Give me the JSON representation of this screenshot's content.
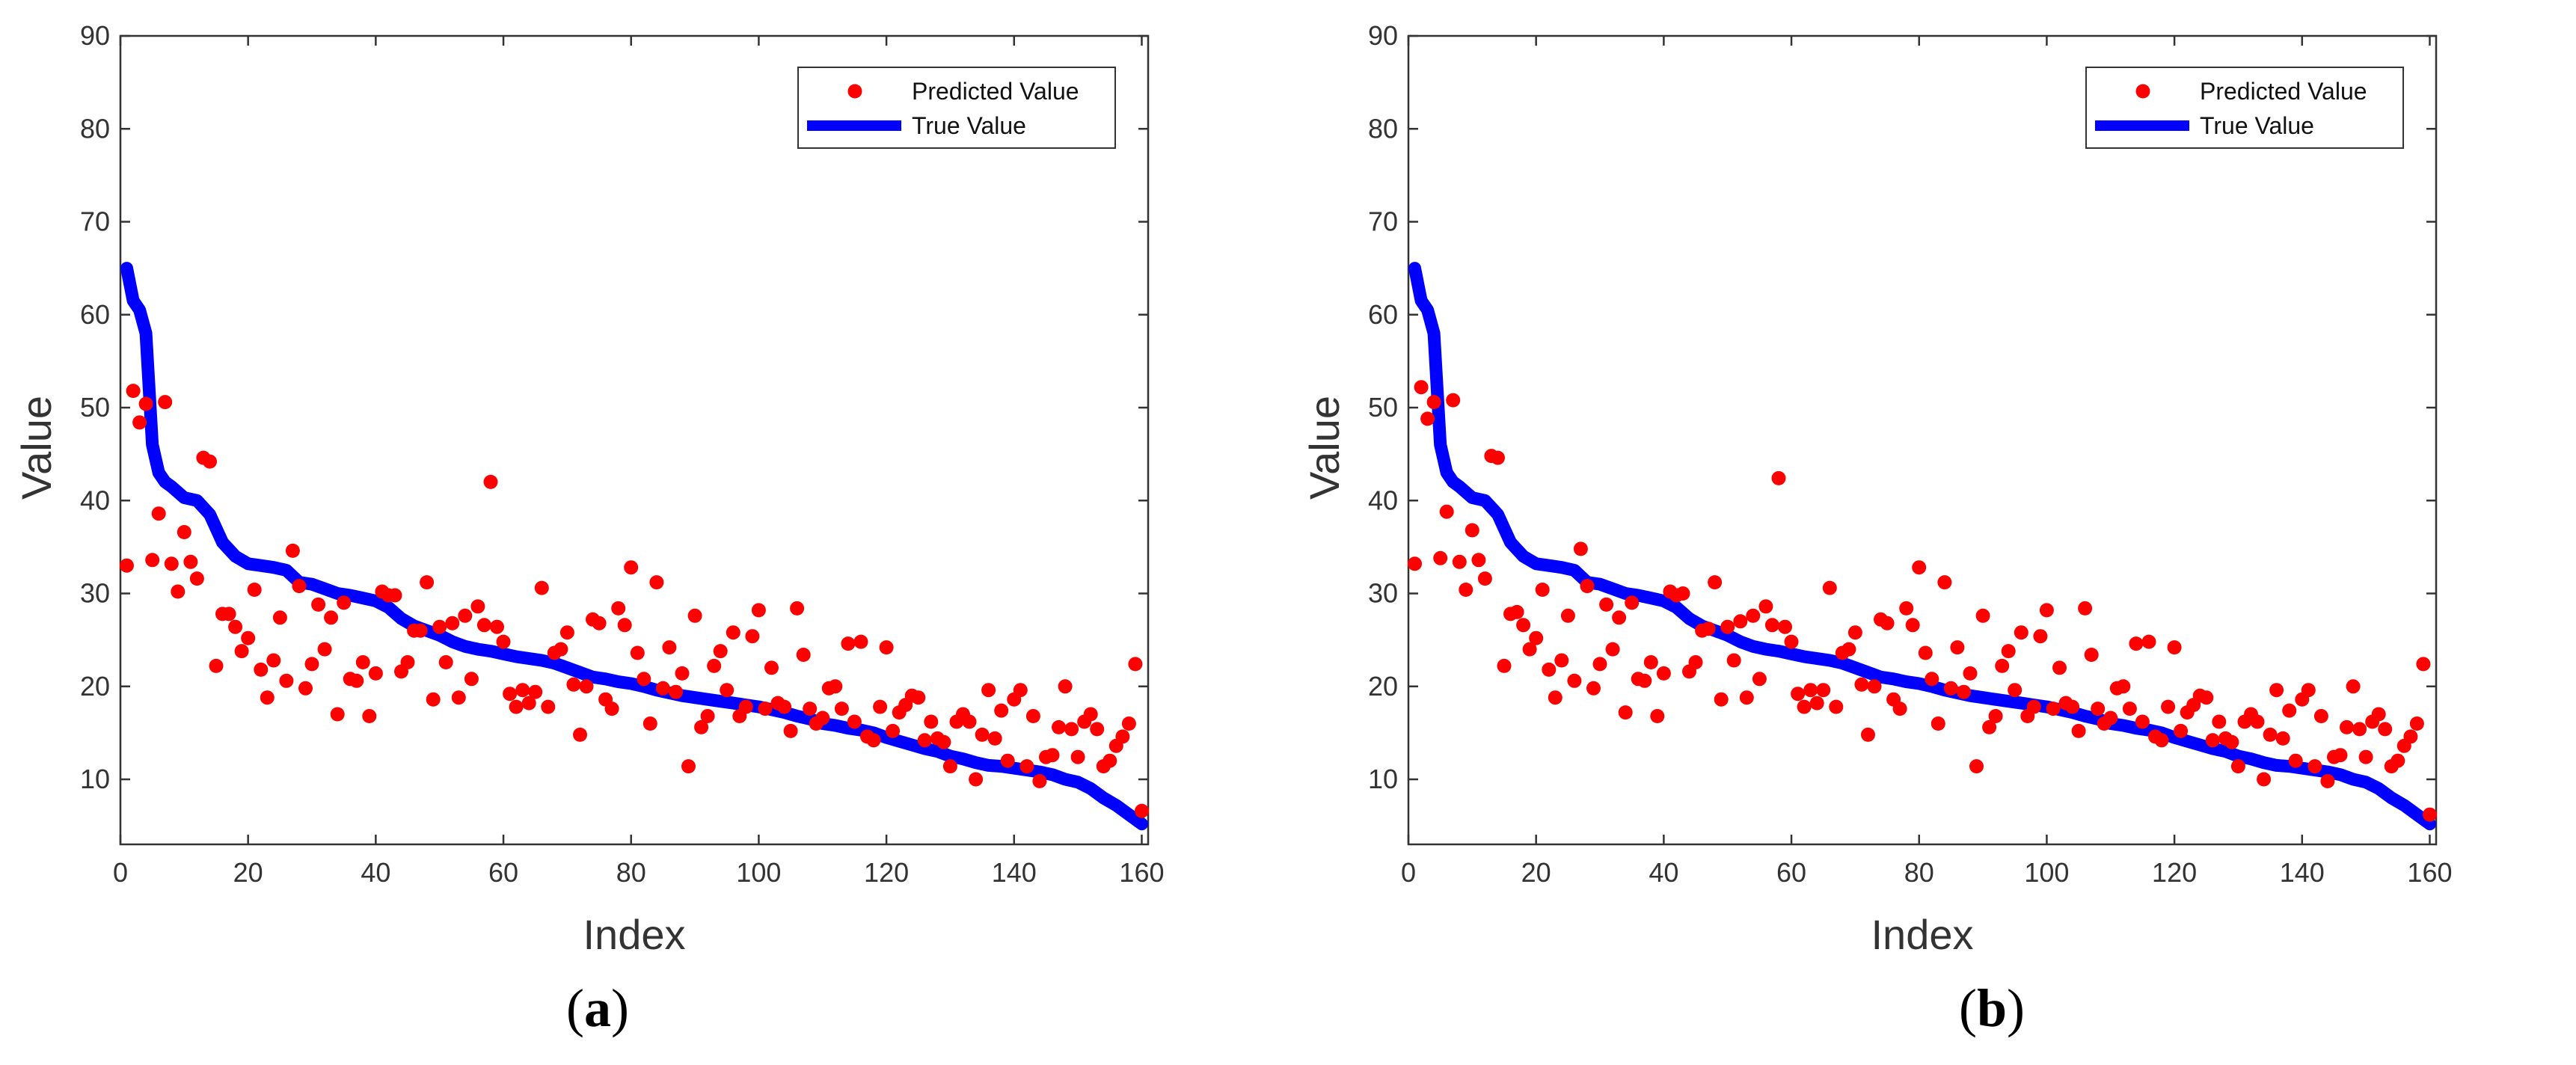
{
  "colors": {
    "predicted": "#ff0000",
    "true": "#0000ff",
    "axis": "#333333",
    "background": "#ffffff"
  },
  "chart_data": [
    {
      "panel": "a",
      "caption": "a",
      "type": "scatter+line",
      "title": "",
      "xlabel": "Index",
      "ylabel": "Value",
      "xlim": [
        0,
        161
      ],
      "ylim": [
        3,
        90
      ],
      "xticks": [
        0,
        20,
        40,
        60,
        80,
        100,
        120,
        140,
        160
      ],
      "yticks": [
        10,
        20,
        30,
        40,
        50,
        60,
        70,
        80,
        90
      ],
      "grid": false,
      "legend_position": "top-right",
      "series": [
        {
          "name": "Predicted Value",
          "style": "markers",
          "x": [
            1,
            2,
            3,
            4,
            5,
            6,
            7,
            8,
            9,
            10,
            11,
            12,
            13,
            14,
            15,
            16,
            17,
            18,
            19,
            20,
            21,
            22,
            23,
            24,
            25,
            26,
            27,
            28,
            29,
            30,
            31,
            32,
            33,
            34,
            35,
            36,
            37,
            38,
            39,
            40,
            41,
            42,
            43,
            44,
            45,
            46,
            47,
            48,
            49,
            50,
            51,
            52,
            53,
            54,
            55,
            56,
            57,
            58,
            59,
            60,
            61,
            62,
            63,
            64,
            65,
            66,
            67,
            68,
            69,
            70,
            71,
            72,
            73,
            74,
            75,
            76,
            77,
            78,
            79,
            80,
            81,
            82,
            83,
            84,
            85,
            86,
            87,
            88,
            89,
            90,
            91,
            92,
            93,
            94,
            95,
            96,
            97,
            98,
            99,
            100,
            101,
            102,
            103,
            104,
            105,
            106,
            107,
            108,
            109,
            110,
            111,
            112,
            113,
            114,
            115,
            116,
            117,
            118,
            119,
            120,
            121,
            122,
            123,
            124,
            125,
            126,
            127,
            128,
            129,
            130,
            131,
            132,
            133,
            134,
            135,
            136,
            137,
            138,
            139,
            140,
            141,
            142,
            143,
            144,
            145,
            146,
            147,
            148,
            149,
            150,
            151,
            152,
            153,
            154,
            155,
            156,
            157,
            158,
            159,
            160
          ],
          "y": [
            33,
            51.8,
            48.4,
            50.4,
            33.6,
            38.6,
            50.6,
            33.2,
            30.2,
            36.6,
            33.4,
            31.6,
            44.6,
            44.2,
            22.2,
            27.8,
            27.8,
            26.4,
            23.8,
            25.2,
            30.4,
            21.8,
            18.8,
            22.8,
            27.4,
            20.6,
            34.6,
            30.8,
            19.8,
            22.4,
            28.8,
            24,
            27.4,
            17,
            29,
            20.8,
            20.6,
            22.6,
            16.8,
            21.4,
            30.2,
            29.8,
            29.8,
            21.6,
            22.6,
            26,
            26,
            31.2,
            18.6,
            26.4,
            22.6,
            26.8,
            18.8,
            27.6,
            20.8,
            28.6,
            26.6,
            42,
            26.4,
            24.8,
            19.2,
            17.8,
            19.6,
            18.2,
            19.4,
            30.6,
            17.8,
            23.6,
            24,
            25.8,
            20.2,
            14.8,
            20,
            27.2,
            26.8,
            18.6,
            17.6,
            28.4,
            26.6,
            32.8,
            23.6,
            20.8,
            16,
            31.2,
            19.8,
            24.2,
            19.4,
            21.4,
            11.4,
            27.6,
            15.6,
            16.8,
            22.2,
            23.8,
            19.6,
            25.8,
            16.8,
            17.8,
            25.4,
            28.2,
            17.6,
            22,
            18.2,
            17.8,
            15.2,
            28.4,
            23.4,
            17.6,
            16,
            16.6,
            19.8,
            20,
            17.6,
            24.6,
            16.2,
            24.8,
            14.6,
            14.2,
            17.8,
            24.2,
            15.2,
            17.2,
            18,
            19,
            18.8,
            14.2,
            16.2,
            14.4,
            14,
            11.4,
            16.2,
            17,
            16.2,
            10,
            14.8,
            19.6,
            14.4,
            17.4,
            12,
            18.6,
            19.6,
            11.4,
            16.8,
            9.8,
            12.4,
            12.6,
            15.6,
            20,
            15.4,
            12.4,
            16.2,
            17,
            15.4,
            11.4,
            12,
            13.6,
            14.6,
            16,
            22.4,
            6.6
          ]
        },
        {
          "name": "True Value",
          "style": "line",
          "x": [
            1,
            2,
            3,
            4,
            5,
            6,
            7,
            8,
            10,
            12,
            14,
            16,
            18,
            20,
            22,
            24,
            26,
            28,
            30,
            32,
            34,
            36,
            38,
            40,
            42,
            44,
            46,
            48,
            50,
            52,
            54,
            56,
            58,
            60,
            62,
            64,
            66,
            68,
            70,
            72,
            74,
            76,
            78,
            80,
            82,
            84,
            86,
            88,
            90,
            92,
            94,
            96,
            98,
            100,
            102,
            104,
            106,
            108,
            110,
            112,
            114,
            116,
            118,
            120,
            122,
            124,
            126,
            128,
            130,
            132,
            134,
            136,
            138,
            140,
            142,
            144,
            146,
            148,
            150,
            152,
            154,
            156,
            158,
            160
          ],
          "y": [
            65,
            61.5,
            60.5,
            58,
            46,
            43,
            42,
            41.5,
            40.3,
            40,
            38.5,
            35.5,
            34,
            33.2,
            33,
            32.8,
            32.5,
            31.2,
            31,
            30.5,
            30,
            29.8,
            29.5,
            29.2,
            28.5,
            27.3,
            26.5,
            26,
            25.5,
            24.8,
            24.3,
            24,
            23.8,
            23.5,
            23.2,
            23,
            22.8,
            22.5,
            22,
            21.5,
            21,
            20.8,
            20.5,
            20.3,
            20,
            19.6,
            19.3,
            19,
            18.8,
            18.6,
            18.4,
            18.2,
            18,
            17.8,
            17.5,
            17.2,
            16.8,
            16.5,
            16,
            15.8,
            15.5,
            15.3,
            15,
            14.5,
            14.1,
            13.7,
            13.3,
            13,
            12.5,
            12.2,
            11.8,
            11.5,
            11.4,
            11.2,
            11,
            10.8,
            10.5,
            10,
            9.7,
            9,
            8,
            7.2,
            6.2,
            5.2
          ]
        }
      ]
    },
    {
      "panel": "b",
      "caption": "b",
      "type": "scatter+line",
      "title": "",
      "xlabel": "Index",
      "ylabel": "Value",
      "xlim": [
        0,
        161
      ],
      "ylim": [
        3,
        90
      ],
      "xticks": [
        0,
        20,
        40,
        60,
        80,
        100,
        120,
        140,
        160
      ],
      "yticks": [
        10,
        20,
        30,
        40,
        50,
        60,
        70,
        80,
        90
      ],
      "grid": false,
      "legend_position": "top-right",
      "series": [
        {
          "name": "Predicted Value",
          "style": "markers",
          "x": [
            1,
            2,
            3,
            4,
            5,
            6,
            7,
            8,
            9,
            10,
            11,
            12,
            13,
            14,
            15,
            16,
            17,
            18,
            19,
            20,
            21,
            22,
            23,
            24,
            25,
            26,
            27,
            28,
            29,
            30,
            31,
            32,
            33,
            34,
            35,
            36,
            37,
            38,
            39,
            40,
            41,
            42,
            43,
            44,
            45,
            46,
            47,
            48,
            49,
            50,
            51,
            52,
            53,
            54,
            55,
            56,
            57,
            58,
            59,
            60,
            61,
            62,
            63,
            64,
            65,
            66,
            67,
            68,
            69,
            70,
            71,
            72,
            73,
            74,
            75,
            76,
            77,
            78,
            79,
            80,
            81,
            82,
            83,
            84,
            85,
            86,
            87,
            88,
            89,
            90,
            91,
            92,
            93,
            94,
            95,
            96,
            97,
            98,
            99,
            100,
            101,
            102,
            103,
            104,
            105,
            106,
            107,
            108,
            109,
            110,
            111,
            112,
            113,
            114,
            115,
            116,
            117,
            118,
            119,
            120,
            121,
            122,
            123,
            124,
            125,
            126,
            127,
            128,
            129,
            130,
            131,
            132,
            133,
            134,
            135,
            136,
            137,
            138,
            139,
            140,
            141,
            142,
            143,
            144,
            145,
            146,
            147,
            148,
            149,
            150,
            151,
            152,
            153,
            154,
            155,
            156,
            157,
            158,
            159,
            160
          ],
          "y": [
            33.2,
            52.2,
            48.8,
            50.6,
            33.8,
            38.8,
            50.8,
            33.4,
            30.4,
            36.8,
            33.6,
            31.6,
            44.8,
            44.6,
            22.2,
            27.8,
            28,
            26.6,
            24,
            25.2,
            30.4,
            21.8,
            18.8,
            22.8,
            27.6,
            20.6,
            34.8,
            30.8,
            19.8,
            22.4,
            28.8,
            24,
            27.4,
            17.2,
            29,
            20.8,
            20.6,
            22.6,
            16.8,
            21.4,
            30.2,
            29.8,
            30,
            21.6,
            22.6,
            26,
            26.2,
            31.2,
            18.6,
            26.4,
            22.8,
            27,
            18.8,
            27.6,
            20.8,
            28.6,
            26.6,
            42.4,
            26.4,
            24.8,
            19.2,
            17.8,
            19.6,
            18.2,
            19.6,
            30.6,
            17.8,
            23.6,
            24,
            25.8,
            20.2,
            14.8,
            20,
            27.2,
            26.8,
            18.6,
            17.6,
            28.4,
            26.6,
            32.8,
            23.6,
            20.8,
            16,
            31.2,
            19.8,
            24.2,
            19.4,
            21.4,
            11.4,
            27.6,
            15.6,
            16.8,
            22.2,
            23.8,
            19.6,
            25.8,
            16.8,
            17.8,
            25.4,
            28.2,
            17.6,
            22,
            18.2,
            17.8,
            15.2,
            28.4,
            23.4,
            17.6,
            16,
            16.6,
            19.8,
            20,
            17.6,
            24.6,
            16.2,
            24.8,
            14.6,
            14.2,
            17.8,
            24.2,
            15.2,
            17.2,
            18,
            19,
            18.8,
            14.2,
            16.2,
            14.4,
            14,
            11.4,
            16.2,
            17,
            16.2,
            10,
            14.8,
            19.6,
            14.4,
            17.4,
            12,
            18.6,
            19.6,
            11.4,
            16.8,
            9.8,
            12.4,
            12.6,
            15.6,
            20,
            15.4,
            12.4,
            16.2,
            17,
            15.4,
            11.4,
            12,
            13.6,
            14.6,
            16,
            22.4,
            6.2
          ]
        },
        {
          "name": "True Value",
          "style": "line",
          "x": [
            1,
            2,
            3,
            4,
            5,
            6,
            7,
            8,
            10,
            12,
            14,
            16,
            18,
            20,
            22,
            24,
            26,
            28,
            30,
            32,
            34,
            36,
            38,
            40,
            42,
            44,
            46,
            48,
            50,
            52,
            54,
            56,
            58,
            60,
            62,
            64,
            66,
            68,
            70,
            72,
            74,
            76,
            78,
            80,
            82,
            84,
            86,
            88,
            90,
            92,
            94,
            96,
            98,
            100,
            102,
            104,
            106,
            108,
            110,
            112,
            114,
            116,
            118,
            120,
            122,
            124,
            126,
            128,
            130,
            132,
            134,
            136,
            138,
            140,
            142,
            144,
            146,
            148,
            150,
            152,
            154,
            156,
            158,
            160
          ],
          "y": [
            65,
            61.5,
            60.5,
            58,
            46,
            43,
            42,
            41.5,
            40.3,
            40,
            38.5,
            35.5,
            34,
            33.2,
            33,
            32.8,
            32.5,
            31.2,
            31,
            30.5,
            30,
            29.8,
            29.5,
            29.2,
            28.5,
            27.3,
            26.5,
            26,
            25.5,
            24.8,
            24.3,
            24,
            23.8,
            23.5,
            23.2,
            23,
            22.8,
            22.5,
            22,
            21.5,
            21,
            20.8,
            20.5,
            20.3,
            20,
            19.6,
            19.3,
            19,
            18.8,
            18.6,
            18.4,
            18.2,
            18,
            17.8,
            17.5,
            17.2,
            16.8,
            16.5,
            16,
            15.8,
            15.5,
            15.3,
            15,
            14.5,
            14.1,
            13.7,
            13.3,
            13,
            12.5,
            12.2,
            11.8,
            11.5,
            11.4,
            11.2,
            11,
            10.8,
            10.5,
            10,
            9.7,
            9,
            8,
            7.2,
            6.2,
            5.2
          ]
        }
      ]
    }
  ]
}
